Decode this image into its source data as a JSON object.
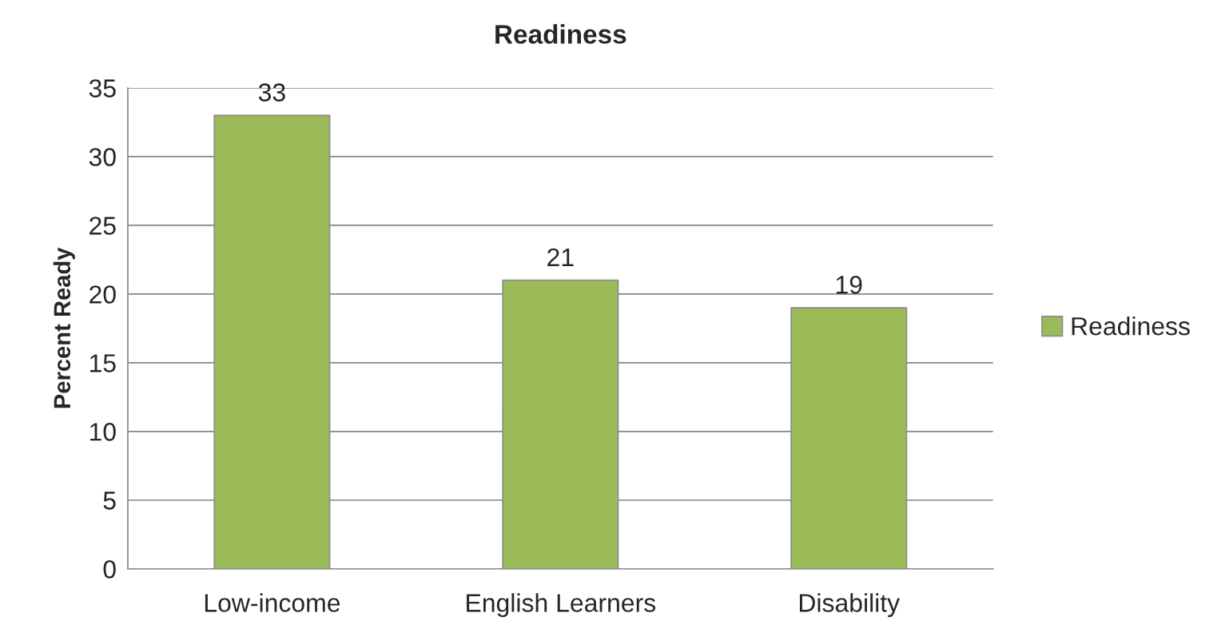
{
  "chart_data": {
    "type": "bar",
    "title": "Readiness",
    "ylabel": "Percent Ready",
    "categories": [
      "Low-income",
      "English Learners",
      "Disability"
    ],
    "series": [
      {
        "name": "Readiness",
        "color": "#9bbb59",
        "values": [
          33,
          21,
          19
        ]
      }
    ],
    "ylim": [
      0,
      35
    ],
    "yticks": [
      0,
      5,
      10,
      15,
      20,
      25,
      30,
      35
    ],
    "grid": "y",
    "legend": "right",
    "data_labels": true
  }
}
